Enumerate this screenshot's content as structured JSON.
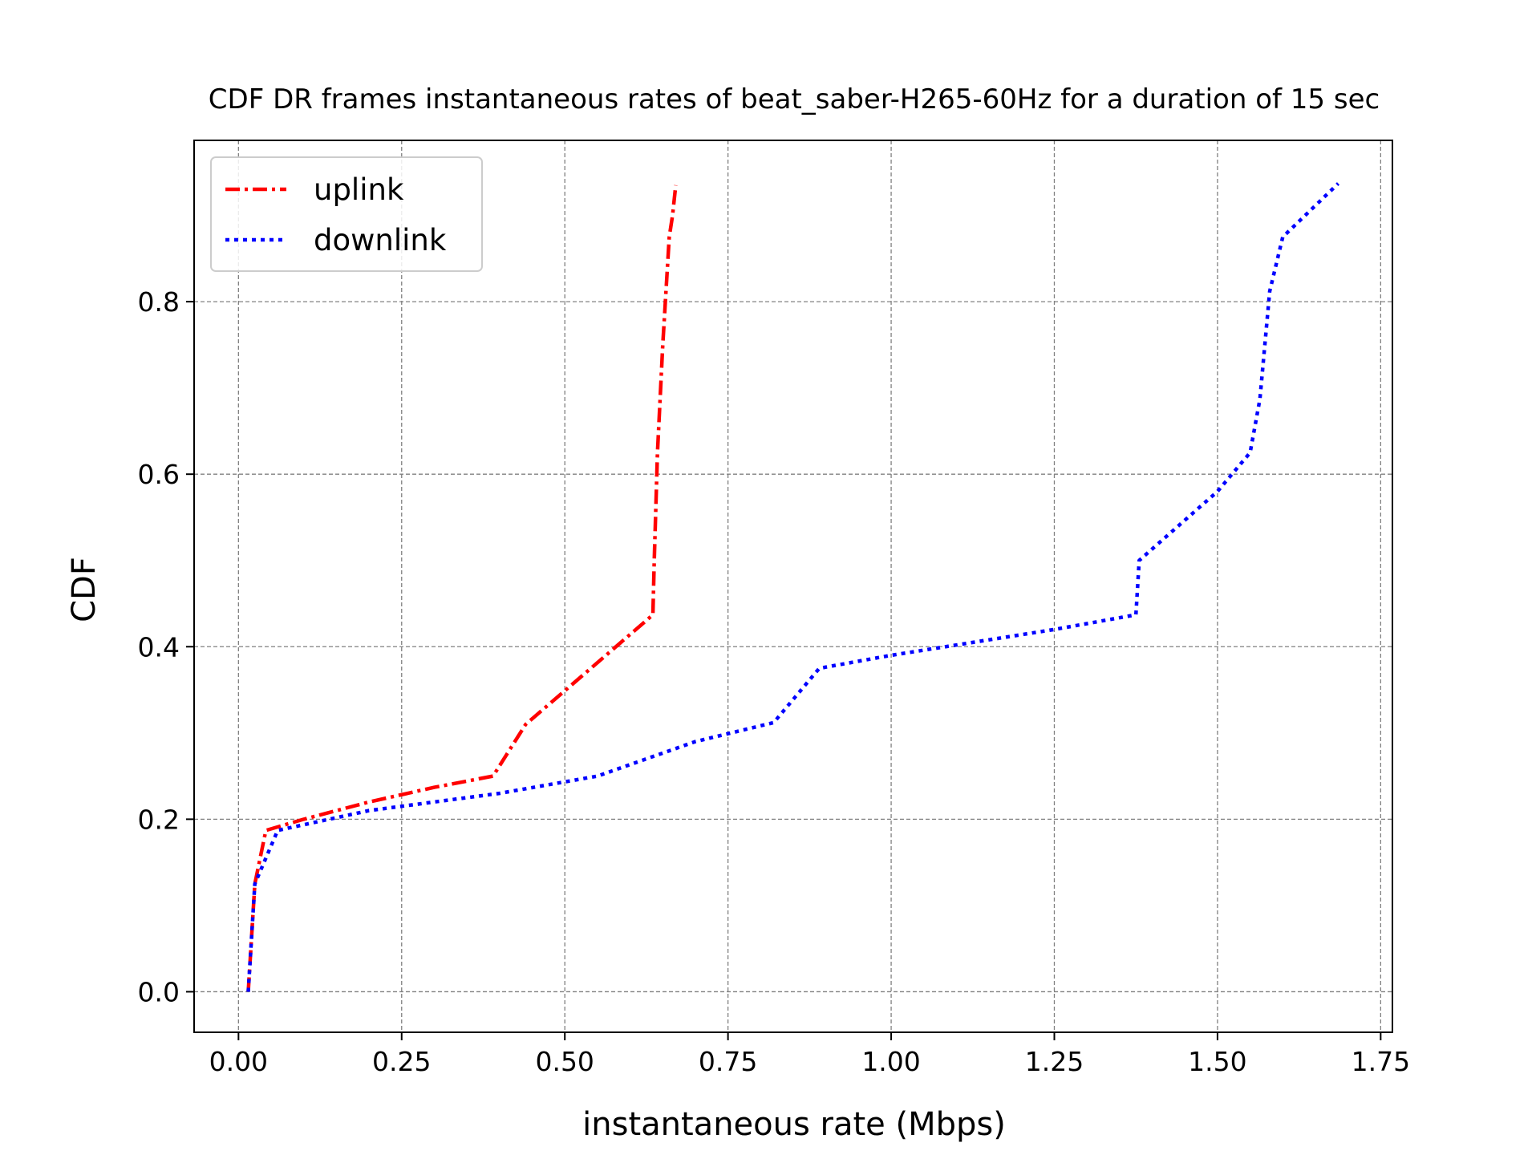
{
  "chart_data": {
    "type": "line",
    "title": "CDF DR frames instantaneous rates of beat_saber-H265-60Hz for a duration of 15 sec",
    "xlabel": "instantaneous rate (Mbps)",
    "ylabel": "CDF",
    "xlim": [
      -0.068,
      1.768
    ],
    "ylim": [
      -0.047,
      0.987
    ],
    "xticks": [
      0.0,
      0.25,
      0.5,
      0.75,
      1.0,
      1.25,
      1.5,
      1.75
    ],
    "xtick_labels": [
      "0.00",
      "0.25",
      "0.50",
      "0.75",
      "1.00",
      "1.25",
      "1.50",
      "1.75"
    ],
    "yticks": [
      0.0,
      0.2,
      0.4,
      0.6,
      0.8
    ],
    "ytick_labels": [
      "0.0",
      "0.2",
      "0.4",
      "0.6",
      "0.8"
    ],
    "grid": true,
    "legend_position": "top-left",
    "series": [
      {
        "name": "uplink",
        "color": "#ff0000",
        "linestyle": "dash-dot",
        "x": [
          0.015,
          0.025,
          0.042,
          0.1,
          0.2,
          0.3,
          0.39,
          0.44,
          0.54,
          0.635,
          0.637,
          0.642,
          0.65,
          0.66,
          0.665,
          0.67
        ],
        "y": [
          0.0,
          0.125,
          0.187,
          0.2,
          0.22,
          0.237,
          0.25,
          0.31,
          0.375,
          0.437,
          0.5,
          0.625,
          0.75,
          0.875,
          0.9,
          0.935
        ]
      },
      {
        "name": "downlink",
        "color": "#0000ff",
        "linestyle": "dotted",
        "x": [
          0.015,
          0.025,
          0.06,
          0.2,
          0.4,
          0.55,
          0.7,
          0.82,
          0.89,
          1.0,
          1.25,
          1.375,
          1.38,
          1.5,
          1.55,
          1.565,
          1.58,
          1.6,
          1.685
        ],
        "y": [
          0.0,
          0.125,
          0.187,
          0.21,
          0.23,
          0.25,
          0.29,
          0.312,
          0.375,
          0.39,
          0.42,
          0.437,
          0.5,
          0.58,
          0.625,
          0.687,
          0.812,
          0.875,
          0.937
        ]
      }
    ]
  }
}
